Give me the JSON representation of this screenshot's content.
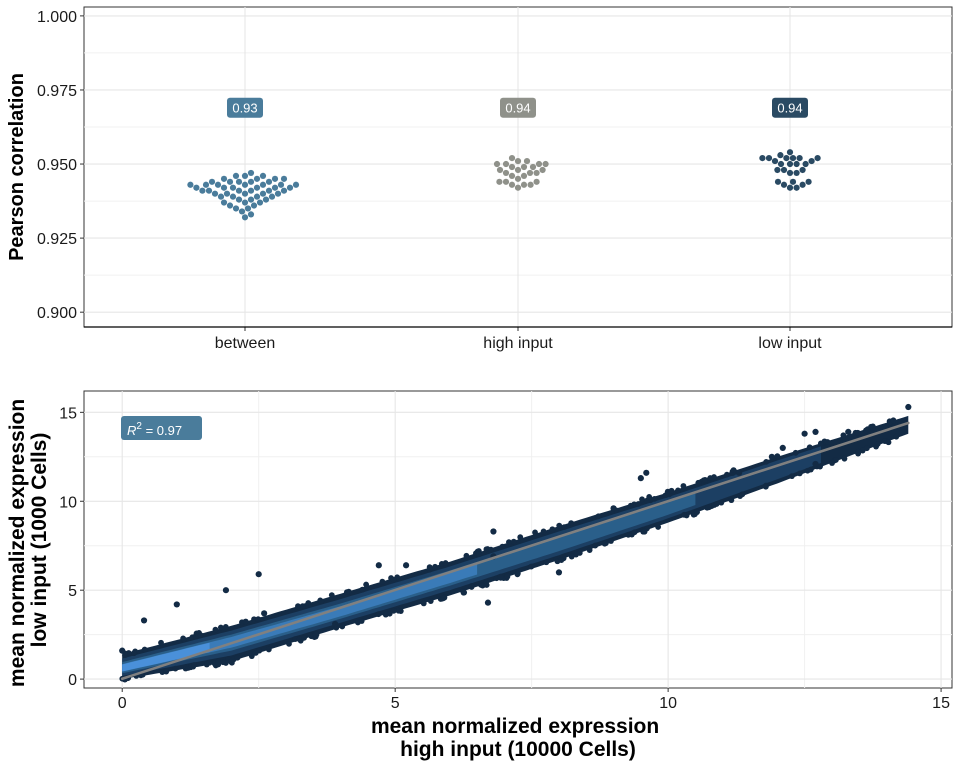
{
  "chart_data": [
    {
      "type": "scatter",
      "subtype": "beeswarm",
      "ylabel": "Pearson correlation",
      "xlabel": "",
      "categories": [
        "between",
        "high input",
        "low input"
      ],
      "ylim": [
        0.895,
        1.003
      ],
      "yticks": [
        "0.900",
        "0.925",
        "0.950",
        "0.975",
        "1.000"
      ],
      "grid": true,
      "colors": [
        "#4a7c9b",
        "#8f918a",
        "#2a4a63"
      ],
      "labels": [
        "0.93",
        "0.94",
        "0.94"
      ],
      "label_y": 0.969,
      "series": [
        {
          "category": "between",
          "values": [
            0.932,
            0.933,
            0.934,
            0.935,
            0.935,
            0.936,
            0.936,
            0.937,
            0.937,
            0.937,
            0.938,
            0.938,
            0.938,
            0.939,
            0.939,
            0.939,
            0.939,
            0.94,
            0.94,
            0.94,
            0.94,
            0.94,
            0.941,
            0.941,
            0.941,
            0.941,
            0.941,
            0.941,
            0.942,
            0.942,
            0.942,
            0.942,
            0.942,
            0.942,
            0.943,
            0.943,
            0.943,
            0.943,
            0.943,
            0.943,
            0.943,
            0.944,
            0.944,
            0.944,
            0.944,
            0.944,
            0.945,
            0.945,
            0.945,
            0.945,
            0.946,
            0.946,
            0.946,
            0.947
          ]
        },
        {
          "category": "high input",
          "values": [
            0.942,
            0.943,
            0.943,
            0.943,
            0.944,
            0.944,
            0.944,
            0.945,
            0.946,
            0.946,
            0.947,
            0.947,
            0.947,
            0.948,
            0.948,
            0.948,
            0.949,
            0.949,
            0.949,
            0.95,
            0.95,
            0.95,
            0.95,
            0.951,
            0.951,
            0.952
          ]
        },
        {
          "category": "low input",
          "values": [
            0.942,
            0.942,
            0.943,
            0.943,
            0.944,
            0.944,
            0.944,
            0.947,
            0.947,
            0.948,
            0.948,
            0.948,
            0.95,
            0.95,
            0.95,
            0.95,
            0.951,
            0.951,
            0.952,
            0.952,
            0.952,
            0.952,
            0.952,
            0.952,
            0.953,
            0.954
          ]
        }
      ]
    },
    {
      "type": "scatter",
      "subtype": "density-colored scatter with regression line",
      "xlabel": [
        "mean normalized expression",
        "high input (10000 Cells)"
      ],
      "ylabel": [
        "mean normalized expression",
        "low input (1000 Cells)"
      ],
      "xlim": [
        -0.7,
        15.2
      ],
      "ylim": [
        -0.5,
        16.2
      ],
      "xticks": [
        0,
        5,
        10,
        15
      ],
      "yticks": [
        0,
        5,
        10,
        15
      ],
      "grid": true,
      "annotation": {
        "text": "R",
        "superscript": "2",
        "rest": " = 0.97",
        "color": "#4a7c9b"
      },
      "regression_line": {
        "x": [
          0,
          14.4
        ],
        "y": [
          0.02,
          14.4
        ],
        "color": "#808080"
      },
      "point_colors": {
        "dense": "#4a90d9",
        "mid": "#2a5f8a",
        "sparse": "#132b45"
      },
      "cloud_band": {
        "center": [
          [
            0,
            0.6
          ],
          [
            2,
            2.1
          ],
          [
            4,
            3.8
          ],
          [
            6,
            5.7
          ],
          [
            8,
            7.6
          ],
          [
            10,
            9.6
          ],
          [
            12,
            11.8
          ],
          [
            14.4,
            14.4
          ]
        ],
        "low": [
          [
            0,
            0.0
          ],
          [
            2,
            1.0
          ],
          [
            4,
            2.9
          ],
          [
            6,
            4.7
          ],
          [
            8,
            6.7
          ],
          [
            10,
            8.8
          ],
          [
            12,
            11.0
          ],
          [
            14.4,
            13.8
          ]
        ],
        "high": [
          [
            0,
            1.4
          ],
          [
            2,
            3.0
          ],
          [
            4,
            4.8
          ],
          [
            6,
            6.6
          ],
          [
            8,
            8.6
          ],
          [
            10,
            10.5
          ],
          [
            12,
            12.5
          ],
          [
            14.4,
            14.8
          ]
        ]
      },
      "outliers": [
        [
          0.0,
          1.6
        ],
        [
          0.4,
          3.3
        ],
        [
          1.0,
          4.2
        ],
        [
          1.9,
          5.0
        ],
        [
          2.5,
          5.9
        ],
        [
          2.6,
          3.7
        ],
        [
          3.9,
          3.1
        ],
        [
          4.7,
          6.4
        ],
        [
          5.2,
          6.4
        ],
        [
          6.7,
          4.3
        ],
        [
          6.8,
          8.3
        ],
        [
          6.8,
          6.9
        ],
        [
          8.0,
          6.0
        ],
        [
          9.0,
          9.6
        ],
        [
          9.5,
          11.3
        ],
        [
          9.6,
          11.6
        ],
        [
          11.3,
          11.6
        ],
        [
          12.1,
          13.0
        ],
        [
          12.5,
          13.8
        ],
        [
          12.7,
          13.9
        ],
        [
          13.3,
          13.9
        ],
        [
          14.4,
          15.3
        ],
        [
          12.7,
          12.1
        ],
        [
          11.9,
          12.5
        ]
      ]
    }
  ]
}
